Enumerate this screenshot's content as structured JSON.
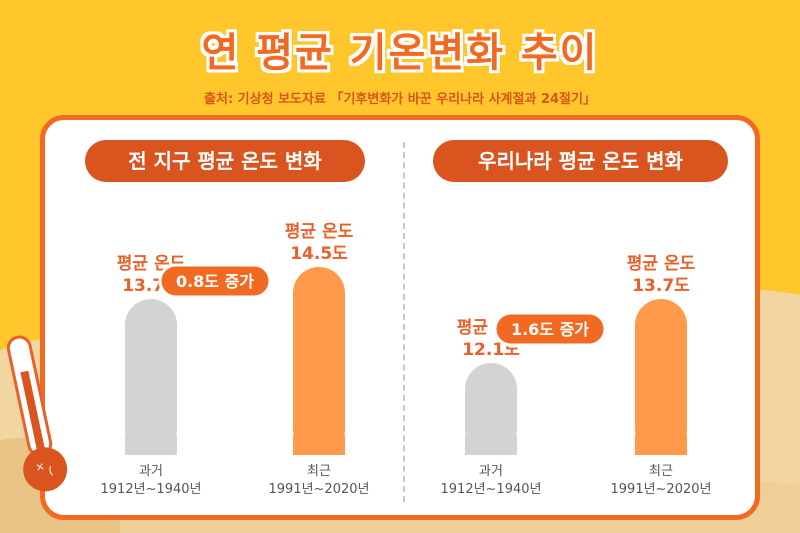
{
  "title": "연 평균 기온변화 추이",
  "source": "출처: 기상청 보도자료 「기후변화가 바꾼 우리나라 사계절과 24절기」",
  "colors": {
    "background": "#FFC72C",
    "accent": "#F26A22",
    "past_bar": "#D3D3D3",
    "recent_bar": "#FF9A4C",
    "value_text": "#E8602A"
  },
  "chart_data": [
    {
      "type": "bar",
      "title": "전 지구 평균 온도 변화",
      "categories": [
        "과거",
        "최근"
      ],
      "category_periods": [
        "1912년~1940년",
        "1991년~2020년"
      ],
      "values": [
        13.7,
        14.5
      ],
      "value_labels": [
        "평균 온도\n13.7도",
        "평균 온도\n14.5도"
      ],
      "difference_label": "0.8도 증가",
      "difference": 0.8
    },
    {
      "type": "bar",
      "title": "우리나라 평균 온도 변화",
      "categories": [
        "과거",
        "최근"
      ],
      "category_periods": [
        "1912년~1940년",
        "1991년~2020년"
      ],
      "values": [
        12.1,
        13.7
      ],
      "value_labels": [
        "평균 온도\n12.1도",
        "평균 온도\n13.7도"
      ],
      "difference_label": "1.6도 증가",
      "difference": 1.6
    }
  ]
}
